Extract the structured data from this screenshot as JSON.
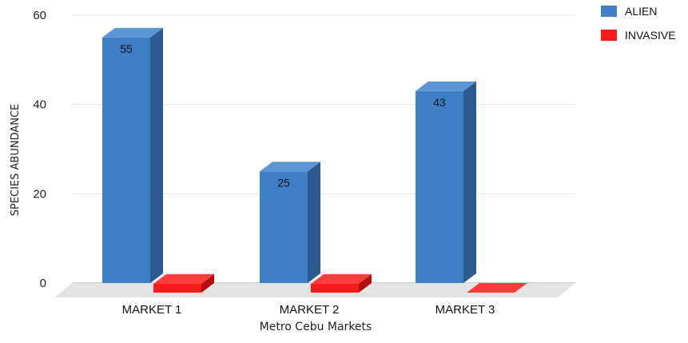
{
  "chart_data": {
    "type": "bar",
    "style": "3d",
    "categories": [
      "MARKET 1",
      "MARKET 2",
      "MARKET 3"
    ],
    "series": [
      {
        "name": "ALIEN",
        "values": [
          55,
          25,
          43
        ],
        "data_labels": [
          "55",
          "25",
          "43"
        ],
        "color": "#3f7fc6",
        "side_color": "#2c5a8e",
        "top_color": "#5b95d6"
      },
      {
        "name": "INVASIVE",
        "values": [
          2,
          2,
          0
        ],
        "data_labels": [
          "",
          "",
          ""
        ],
        "color": "#ff1a1a",
        "side_color": "#b30f0f",
        "top_color": "#ff3b3b"
      }
    ],
    "title": "",
    "xlabel": "Metro Cebu Markets",
    "ylabel": "SPECIES ABUNDANCE",
    "ylim": [
      0,
      60
    ],
    "yticks": [
      0,
      20,
      40,
      60
    ],
    "grid": true,
    "legend_position": "top-right"
  }
}
